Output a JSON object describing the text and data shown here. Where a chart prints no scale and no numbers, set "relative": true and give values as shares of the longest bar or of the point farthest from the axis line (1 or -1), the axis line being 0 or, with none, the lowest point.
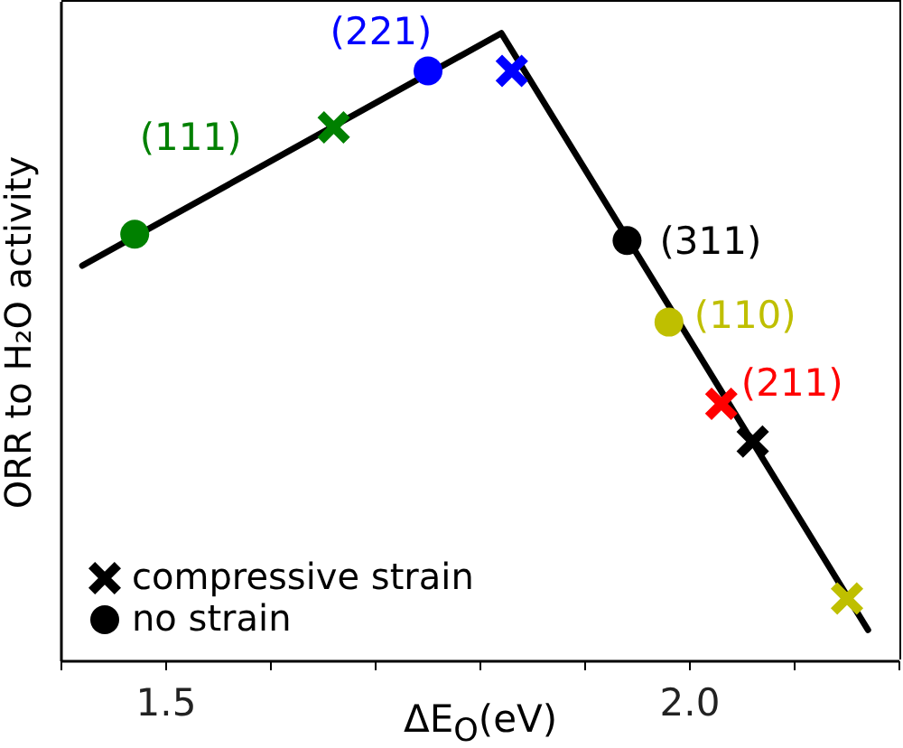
{
  "chart_data": {
    "type": "scatter",
    "xlabel": "ΔE$_{O}$(eV)",
    "ylabel": "ORR to H₂O activity",
    "relative": true,
    "xlim": [
      1.4,
      2.2
    ],
    "xticks": [
      {
        "value": 1.4,
        "label": null
      },
      1.5,
      {
        "value": 1.6,
        "label": null
      },
      {
        "value": 1.7,
        "label": null
      },
      {
        "value": 1.8,
        "label": null
      },
      {
        "value": 1.9,
        "label": null
      },
      {
        "value": 2,
        "label": "2.0"
      },
      {
        "value": 2.1,
        "label": null
      },
      {
        "value": 2.2,
        "label": null
      }
    ],
    "legend": "bottom left",
    "annotations": [
      {
        "text": "(111)",
        "x": 1.47,
        "y": 0.68
      },
      {
        "text": "(221)",
        "x": 1.75,
        "y": 0.94
      },
      {
        "text": "(311)",
        "x": 1.94,
        "y": 0.67
      },
      {
        "text": "(110)",
        "x": 1.98,
        "y": 0.54
      },
      {
        "text": "(211)",
        "x": 2.03,
        "y": 0.41
      }
    ],
    "series": [
      {
        "type": "line",
        "x": [
          1.42,
          1.82,
          2.17
        ],
        "values": [
          0.63,
          1,
          0.05
        ],
        "color": "#000000",
        "line_style": "solid"
      },
      {
        "name": "compressive strain",
        "marker": "cross",
        "color": "#000000",
        "x": [
          1.66,
          1.83,
          2.03,
          2.06,
          2.15
        ],
        "values": [
          0.85,
          0.94,
          0.41,
          0.35,
          0.1
        ],
        "colors": [
          "#008000",
          "#0000ff",
          "#ff0000",
          "#000000",
          "#bfbf00"
        ]
      },
      {
        "name": "no strain",
        "marker": "circle",
        "color": "#000000",
        "x": [
          1.47,
          1.75,
          1.94,
          1.98
        ],
        "values": [
          0.68,
          0.94,
          0.67,
          0.54
        ],
        "colors": [
          "#008000",
          "#0000ff",
          "#000000",
          "#bfbf00"
        ]
      }
    ]
  }
}
